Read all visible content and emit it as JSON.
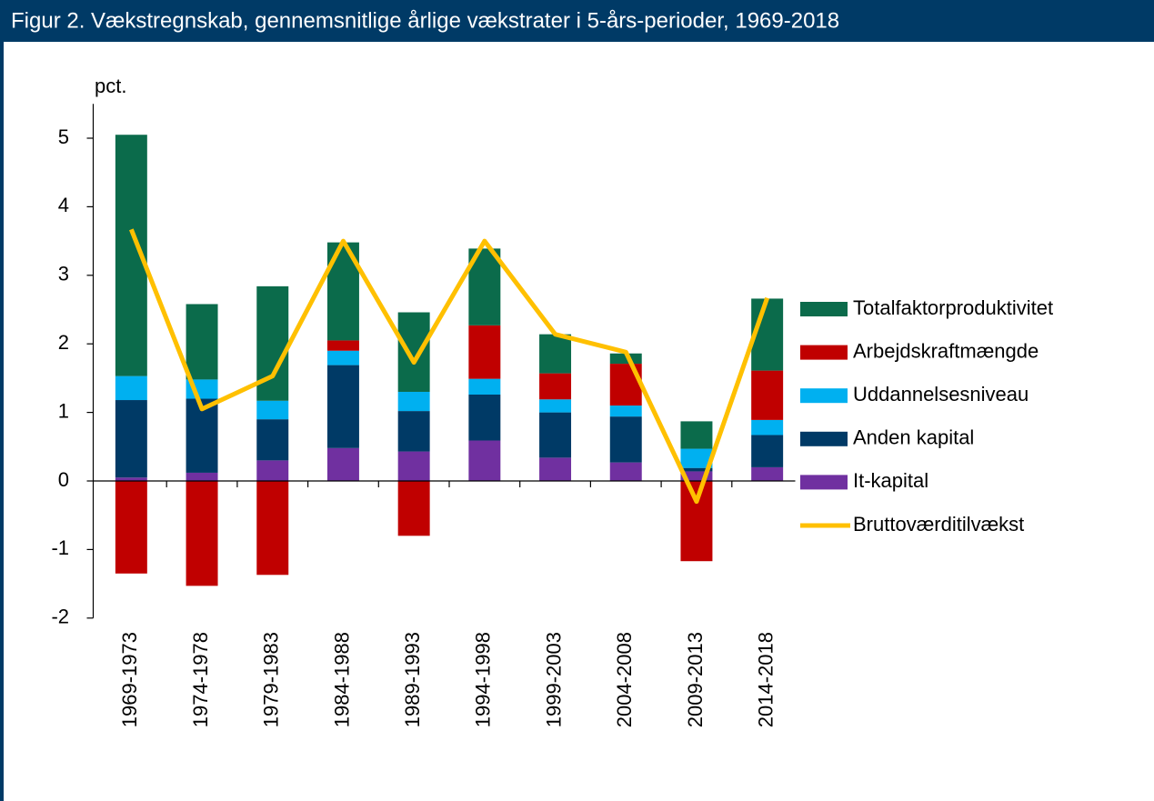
{
  "chart_data": {
    "type": "bar",
    "stacked": true,
    "title": "Figur 2. Vækstregnskab, gennemsnitlige årlige vækstrater i 5-års-perioder, 1969-2018",
    "y_label": "pct.",
    "categories": [
      "1969-1973",
      "1974-1978",
      "1979-1983",
      "1984-1988",
      "1989-1993",
      "1994-1998",
      "1999-2003",
      "2004-2008",
      "2009-2013",
      "2014-2018"
    ],
    "series": [
      {
        "name": "It-kapital",
        "color": "#7030a0",
        "values": [
          0.05,
          0.12,
          0.3,
          0.48,
          0.43,
          0.59,
          0.34,
          0.27,
          0.14,
          0.2
        ]
      },
      {
        "name": "Anden kapital",
        "color": "#003a66",
        "values": [
          1.13,
          1.08,
          0.6,
          1.21,
          0.59,
          0.67,
          0.66,
          0.67,
          0.05,
          0.47
        ]
      },
      {
        "name": "Uddannelsesniveau",
        "color": "#00b0f0",
        "values": [
          0.35,
          0.28,
          0.27,
          0.21,
          0.28,
          0.23,
          0.19,
          0.16,
          0.28,
          0.22
        ]
      },
      {
        "name": "Arbejdskraftmængde",
        "color": "#c00000",
        "values": [
          -1.35,
          -1.53,
          -1.37,
          0.15,
          -0.8,
          0.78,
          0.38,
          0.61,
          -1.17,
          0.72
        ]
      },
      {
        "name": "Totalfaktorproduktivitet",
        "color": "#0b6b4b",
        "values": [
          3.52,
          1.1,
          1.67,
          1.43,
          1.16,
          1.12,
          0.57,
          0.15,
          0.4,
          1.05
        ]
      },
      {
        "name": "Bruttoværditilvækst",
        "color": "#ffc000",
        "type": "line",
        "values": [
          3.67,
          1.05,
          1.53,
          3.5,
          1.73,
          3.5,
          2.14,
          1.88,
          -0.3,
          2.67
        ]
      }
    ],
    "ylim": [
      -2,
      5.5
    ],
    "yticks": [
      -2,
      -1,
      0,
      1,
      2,
      3,
      4,
      5
    ]
  }
}
